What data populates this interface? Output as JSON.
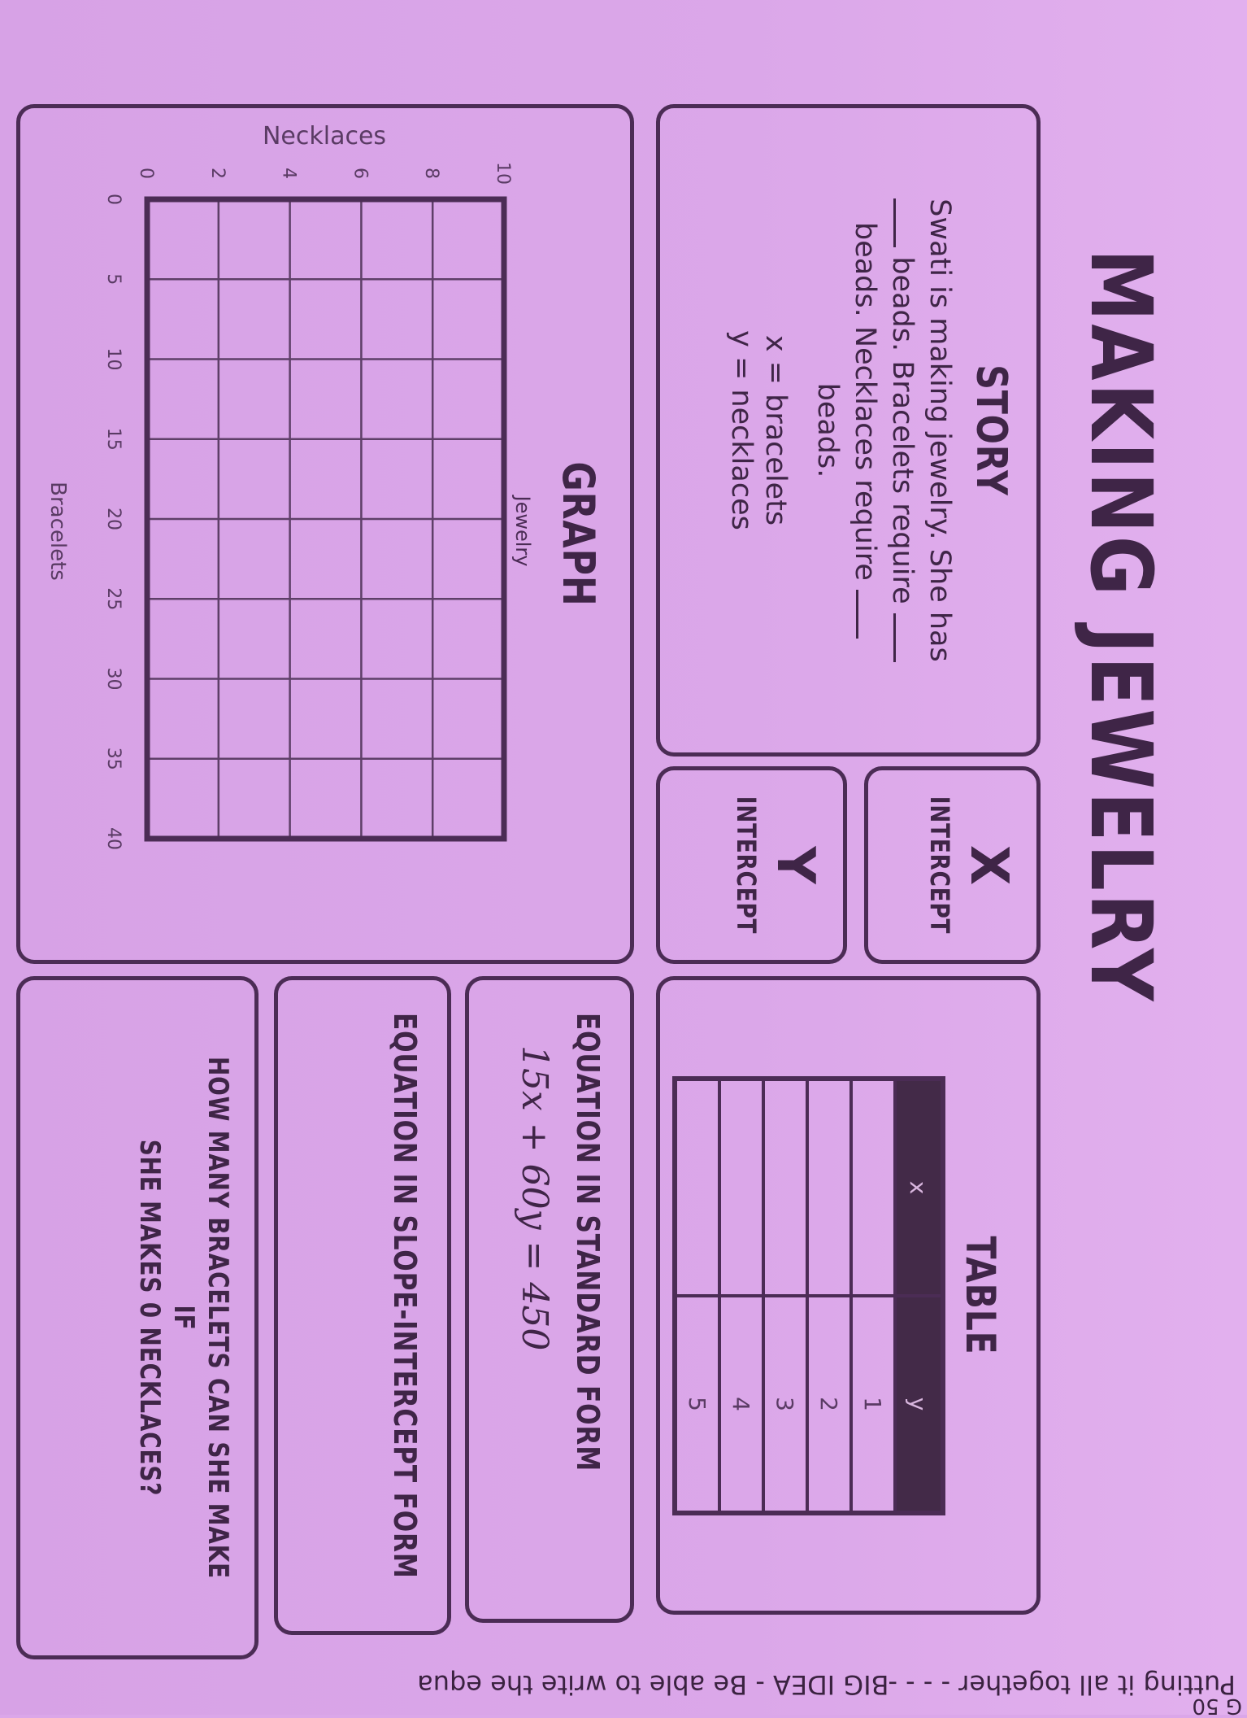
{
  "title": "MAKING JEWELRY",
  "story": {
    "heading": "STORY",
    "line1": "Swati is making jewelry.  She has",
    "line2a": "beads. Bracelets require",
    "line3a": "beads. Necklaces require",
    "line4": "beads.",
    "var_x": "x = bracelets",
    "var_y": "y = necklaces"
  },
  "x_intercept": {
    "letter": "X",
    "label": "INTERCEPT"
  },
  "y_intercept": {
    "letter": "Y",
    "label": "INTERCEPT"
  },
  "table": {
    "heading": "TABLE",
    "columns": [
      "x",
      "y"
    ],
    "rows": [
      [
        "",
        "1"
      ],
      [
        "",
        "2"
      ],
      [
        "",
        "3"
      ],
      [
        "",
        "4"
      ],
      [
        "",
        "5"
      ]
    ]
  },
  "graph": {
    "heading": "GRAPH"
  },
  "chart_data": {
    "type": "line",
    "title": "Jewelry",
    "xlabel": "Bracelets",
    "ylabel": "Necklaces",
    "xlim": [
      0,
      40
    ],
    "ylim": [
      0,
      10
    ],
    "xticks": [
      "0",
      "5",
      "10",
      "15",
      "20",
      "25",
      "30",
      "35",
      "40"
    ],
    "yticks": [
      "0",
      "2",
      "4",
      "6",
      "8",
      "10"
    ],
    "grid": true,
    "series": []
  },
  "standard_form": {
    "heading": "EQUATION IN STANDARD FORM",
    "equation": "15x + 60y = 450"
  },
  "slope_intercept": {
    "heading": "EQUATION IN SLOPE-INTERCEPT FORM"
  },
  "question": {
    "line1": "HOW MANY BRACELETS CAN SHE MAKE IF",
    "line2": "SHE MAKES 0 NECKLACES?"
  },
  "footer": {
    "text": "Putting it all together - - - -BIG IDEA - Be able to write the equa",
    "page": "G 50"
  },
  "colors": {
    "paper": "#dba7e9",
    "ink": "#4b2c55",
    "table_header": "#432a48"
  }
}
